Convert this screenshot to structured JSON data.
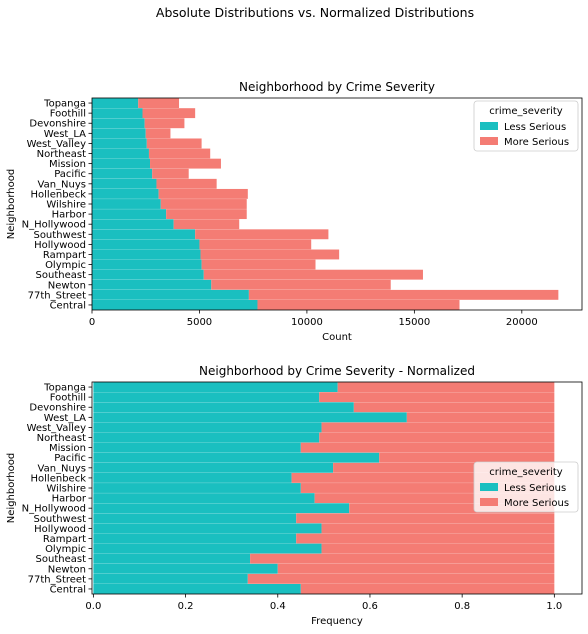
{
  "suptitle": "Absolute Distributions vs. Normalized Distributions",
  "colors": {
    "less": "#1abfc0",
    "more": "#f47c74",
    "legend_border": "#cccccc"
  },
  "chart_data": [
    {
      "type": "bar",
      "orientation": "horizontal",
      "stacked": true,
      "title": "Neighborhood by Crime Severity",
      "xlabel": "Count",
      "ylabel": "Neighborhood",
      "xlim": [
        0,
        22800
      ],
      "xticks": [
        0,
        5000,
        10000,
        15000,
        20000
      ],
      "xtick_labels": [
        "0",
        "5000",
        "10000",
        "15000",
        "20000"
      ],
      "legend": {
        "title": "crime_severity",
        "position": "top-right"
      },
      "categories": [
        "Topanga",
        "Foothill",
        "Devonshire",
        "West_LA",
        "West_Valley",
        "Northeast",
        "Mission",
        "Pacific",
        "Van_Nuys",
        "Hollenbeck",
        "Wilshire",
        "Harbor",
        "N_Hollywood",
        "Southwest",
        "Hollywood",
        "Rampart",
        "Olympic",
        "Southeast",
        "Newton",
        "77th_Street",
        "Central"
      ],
      "series": [
        {
          "name": "Less Serious",
          "values": [
            2150,
            2350,
            2450,
            2500,
            2550,
            2650,
            2700,
            2800,
            3000,
            3100,
            3200,
            3450,
            3800,
            4800,
            5000,
            5050,
            5100,
            5200,
            5550,
            7300,
            7700
          ]
        },
        {
          "name": "More Serious",
          "values": [
            1900,
            2450,
            1850,
            1150,
            2550,
            2850,
            3300,
            1700,
            2800,
            4150,
            4000,
            3750,
            3050,
            6200,
            5200,
            6450,
            5300,
            10200,
            8350,
            14400,
            9400
          ]
        }
      ]
    },
    {
      "type": "bar",
      "orientation": "horizontal",
      "stacked": true,
      "title": "Neighborhood by Crime Severity - Normalized",
      "xlabel": "Frequency",
      "ylabel": "Neighborhood",
      "xlim": [
        -0.003,
        1.06
      ],
      "xticks": [
        0,
        0.2,
        0.4,
        0.6,
        0.8,
        1.0
      ],
      "xtick_labels": [
        "0.0",
        "0.2",
        "0.4",
        "0.6",
        "0.8",
        "1.0"
      ],
      "legend": {
        "title": "crime_severity",
        "position": "center-right"
      },
      "categories": [
        "Topanga",
        "Foothill",
        "Devonshire",
        "West_LA",
        "West_Valley",
        "Northeast",
        "Mission",
        "Pacific",
        "Van_Nuys",
        "Hollenbeck",
        "Wilshire",
        "Harbor",
        "N_Hollywood",
        "Southwest",
        "Hollywood",
        "Rampart",
        "Olympic",
        "Southeast",
        "Newton",
        "77th_Street",
        "Central"
      ],
      "series": [
        {
          "name": "Less Serious",
          "values": [
            0.53,
            0.49,
            0.565,
            0.68,
            0.495,
            0.49,
            0.45,
            0.62,
            0.52,
            0.43,
            0.45,
            0.48,
            0.555,
            0.44,
            0.495,
            0.44,
            0.495,
            0.34,
            0.4,
            0.335,
            0.45
          ]
        },
        {
          "name": "More Serious",
          "values": [
            0.47,
            0.51,
            0.435,
            0.32,
            0.505,
            0.51,
            0.55,
            0.38,
            0.48,
            0.57,
            0.55,
            0.52,
            0.445,
            0.56,
            0.505,
            0.56,
            0.505,
            0.66,
            0.6,
            0.665,
            0.55
          ]
        }
      ]
    }
  ]
}
